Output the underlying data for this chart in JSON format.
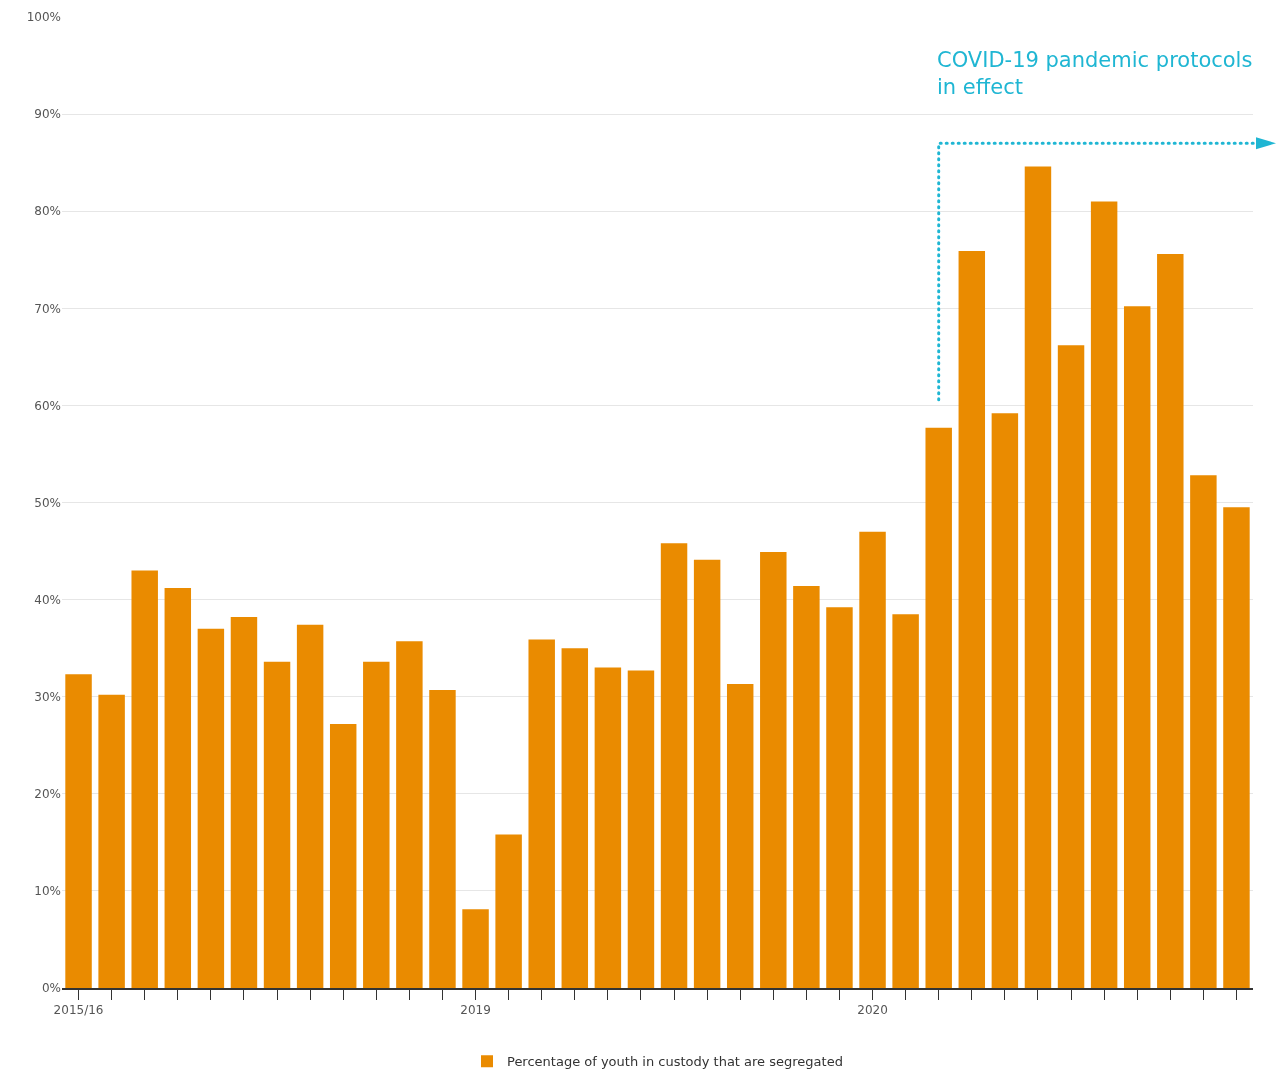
{
  "chart_data": {
    "type": "bar",
    "categories": [
      "2015/16",
      null,
      null,
      null,
      null,
      null,
      null,
      null,
      null,
      null,
      null,
      null,
      "2019",
      null,
      null,
      null,
      null,
      null,
      null,
      null,
      null,
      null,
      null,
      null,
      "2020",
      null,
      null,
      null,
      null,
      null,
      null,
      null,
      null,
      null,
      null,
      null
    ],
    "series": [
      {
        "name": "Percentage of youth in custody that are segregated",
        "color": "#ea8b00",
        "values": [
          32.3,
          30.2,
          43,
          41.2,
          37,
          38.2,
          33.6,
          37.4,
          27.2,
          33.6,
          35.7,
          30.7,
          8.1,
          15.8,
          35.9,
          35,
          33,
          32.7,
          45.8,
          44.1,
          31.3,
          44.9,
          41.4,
          39.2,
          47,
          38.5,
          57.7,
          75.9,
          59.2,
          84.6,
          66.2,
          81,
          70.2,
          75.6,
          52.8,
          49.5
        ]
      }
    ],
    "ylim": [
      0,
      100
    ],
    "yticks": [
      {
        "value": 0,
        "label": "0%"
      },
      {
        "value": 10,
        "label": "10%"
      },
      {
        "value": 20,
        "label": "20%"
      },
      {
        "value": 30,
        "label": "30%"
      },
      {
        "value": 40,
        "label": "40%"
      },
      {
        "value": 50,
        "label": "50%"
      },
      {
        "value": 60,
        "label": "60%"
      },
      {
        "value": 70,
        "label": "70%"
      },
      {
        "value": 80,
        "label": "80%"
      },
      {
        "value": 90,
        "label": "90%"
      },
      {
        "value": 100,
        "label": "100%"
      }
    ],
    "grid": "y",
    "legend": "bottom",
    "ref_lines": [
      {
        "axis": "y",
        "value": 87,
        "label": "COVID-19 pandemic protocols\nin effect",
        "color": "#1fb6d3",
        "line_style": "dotted"
      }
    ]
  }
}
